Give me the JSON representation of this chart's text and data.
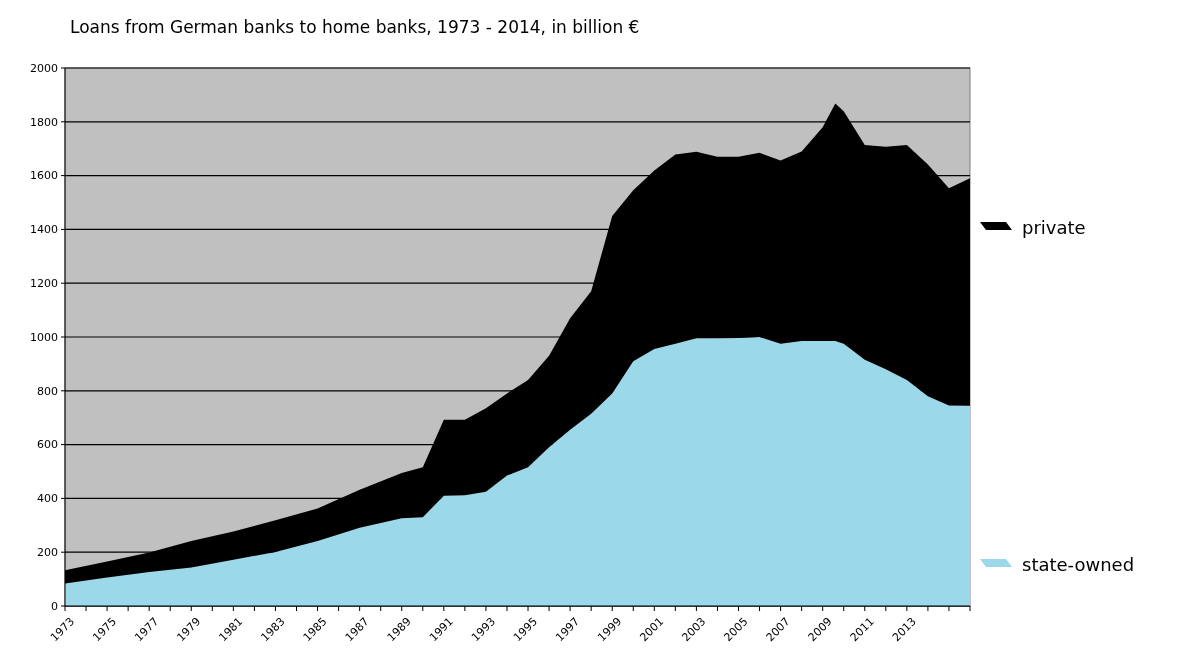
{
  "chart_data": {
    "type": "area",
    "title": "Loans from German banks to home banks, 1973 - 2014, in billion €",
    "stacked": true,
    "legend": "right",
    "grid": "y",
    "x": [
      1973,
      1975,
      1977,
      1979,
      1981,
      1983,
      1985,
      1987,
      1989,
      1990,
      1991,
      1992,
      1993,
      1994,
      1995,
      1996,
      1997,
      1998,
      1999,
      2000,
      2001,
      2002,
      2003,
      2004,
      2005,
      2006,
      2007,
      2008,
      2009,
      2009.6,
      2010,
      2011,
      2012,
      2013,
      2014,
      2015,
      2016
    ],
    "series": [
      {
        "name": "state-owned",
        "color": "#9ad8ea",
        "values": [
          84,
          106,
          126,
          143,
          172,
          201,
          242,
          291,
          326,
          330,
          410,
          412,
          425,
          485,
          516,
          590,
          655,
          715,
          790,
          910,
          955,
          975,
          995,
          995,
          996,
          1000,
          975,
          985,
          985,
          985,
          975,
          915,
          880,
          840,
          780,
          745,
          744
        ]
      },
      {
        "name": "private",
        "color": "#000000",
        "values": [
          49,
          59,
          73,
          99,
          105,
          118,
          120,
          141,
          168,
          186,
          282,
          280,
          310,
          305,
          324,
          340,
          415,
          455,
          660,
          636,
          664,
          703,
          694,
          675,
          674,
          685,
          681,
          705,
          795,
          883,
          864,
          799,
          827,
          874,
          861,
          808,
          846
        ]
      }
    ],
    "xlim": [
      1973,
      2016
    ],
    "xticks": [
      1973,
      {
        "value": 1974,
        "label": null
      },
      1975,
      {
        "value": 1976,
        "label": null
      },
      1977,
      {
        "value": 1978,
        "label": null
      },
      1979,
      {
        "value": 1980,
        "label": null
      },
      1981,
      {
        "value": 1982,
        "label": null
      },
      1983,
      {
        "value": 1984,
        "label": null
      },
      1985,
      {
        "value": 1986,
        "label": null
      },
      1987,
      {
        "value": 1988,
        "label": null
      },
      1989,
      {
        "value": 1990,
        "label": null
      },
      1991,
      {
        "value": 1992,
        "label": null
      },
      1993,
      {
        "value": 1994,
        "label": null
      },
      1995,
      {
        "value": 1996,
        "label": null
      },
      1997,
      {
        "value": 1998,
        "label": null
      },
      1999,
      {
        "value": 2000,
        "label": null
      },
      2001,
      {
        "value": 2002,
        "label": null
      },
      2003,
      {
        "value": 2004,
        "label": null
      },
      2005,
      {
        "value": 2006,
        "label": null
      },
      2007,
      {
        "value": 2008,
        "label": null
      },
      2009,
      {
        "value": 2010,
        "label": null
      },
      2011,
      {
        "value": 2012,
        "label": null
      },
      2013,
      {
        "value": 2014,
        "label": null
      },
      {
        "value": 2015,
        "label": null
      },
      {
        "value": 2016,
        "label": null
      }
    ],
    "ylim": [
      0,
      2000
    ],
    "yticks": [
      0,
      200,
      400,
      600,
      800,
      1000,
      1200,
      1400,
      1600,
      1800,
      2000
    ]
  }
}
